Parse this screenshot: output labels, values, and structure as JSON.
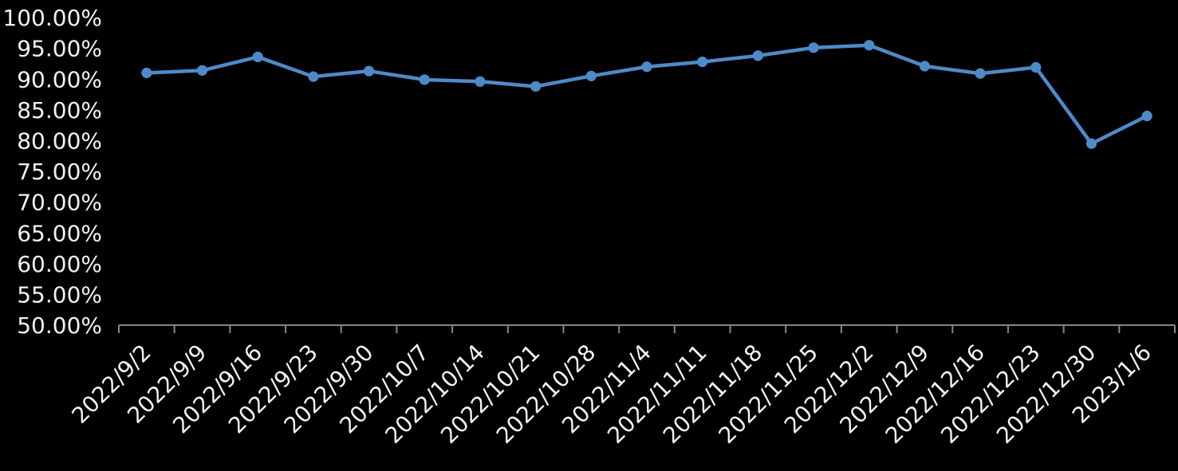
{
  "chart_data": {
    "type": "line",
    "title": "",
    "xlabel": "",
    "ylabel": "",
    "legend": "none",
    "grid": false,
    "background_color": "#000000",
    "text_color": "#f2f2f2",
    "axis_color": "#868686",
    "line_color": "#4e8ac9",
    "marker": "circle",
    "categories": [
      "2022/9/2",
      "2022/9/9",
      "2022/9/16",
      "2022/9/23",
      "2022/9/30",
      "2022/10/7",
      "2022/10/14",
      "2022/10/21",
      "2022/10/28",
      "2022/11/4",
      "2022/11/11",
      "2022/11/18",
      "2022/11/25",
      "2022/12/2",
      "2022/12/9",
      "2022/12/16",
      "2022/12/23",
      "2022/12/30",
      "2023/1/6"
    ],
    "values": [
      91.0,
      91.4,
      93.6,
      90.4,
      91.3,
      89.9,
      89.6,
      88.8,
      90.5,
      92.0,
      92.8,
      93.8,
      95.1,
      95.5,
      92.1,
      90.9,
      91.9,
      79.5,
      84.0
    ],
    "y_axis": {
      "min": 50,
      "max": 100,
      "step": 5,
      "tick_labels": [
        "100.00%",
        "95.00%",
        "90.00%",
        "85.00%",
        "80.00%",
        "75.00%",
        "70.00%",
        "65.00%",
        "60.00%",
        "55.00%",
        "50.00%"
      ]
    }
  }
}
